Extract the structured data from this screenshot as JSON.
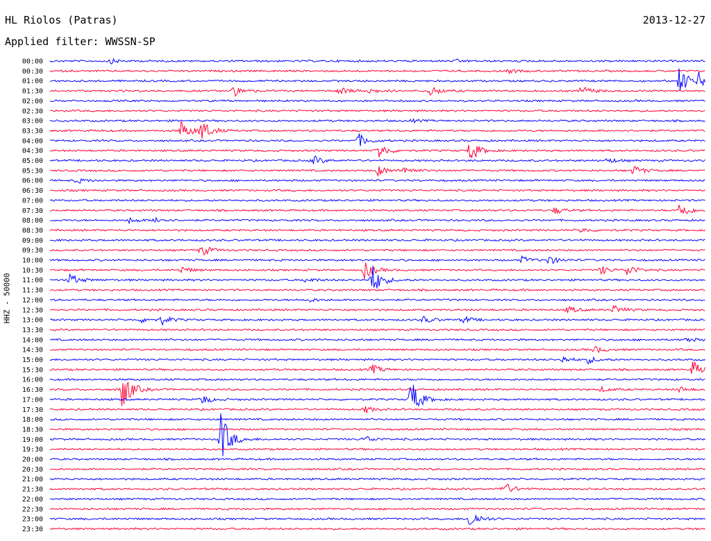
{
  "header": {
    "station": "HL Riolos (Patras)",
    "filter": "Applied filter: WWSSN-SP",
    "date": "2013-12-27"
  },
  "chart_data": {
    "type": "line",
    "title": "HL Riolos (Patras)",
    "subtitle": "Applied filter: WWSSN-SP",
    "ylabel": "HHZ - 50000",
    "row_labels": [
      "00:00",
      "00:30",
      "01:00",
      "01:30",
      "02:00",
      "02:30",
      "03:00",
      "03:30",
      "04:00",
      "04:30",
      "05:00",
      "05:30",
      "06:00",
      "06:30",
      "07:00",
      "07:30",
      "08:00",
      "08:30",
      "09:00",
      "09:30",
      "10:00",
      "10:30",
      "11:00",
      "11:30",
      "12:00",
      "12:30",
      "13:00",
      "13:30",
      "14:00",
      "14:30",
      "15:00",
      "15:30",
      "16:00",
      "16:30",
      "17:00",
      "17:30",
      "18:00",
      "18:30",
      "19:00",
      "19:30",
      "20:00",
      "20:30",
      "21:00",
      "21:30",
      "22:00",
      "22:30",
      "23:00",
      "23:30"
    ],
    "colors": [
      "#0000ff",
      "#ff0033"
    ],
    "grid": false,
    "events": [
      [
        0,
        0.09,
        0.3
      ],
      [
        0,
        0.62,
        0.15
      ],
      [
        1,
        0.7,
        0.2
      ],
      [
        2,
        0.96,
        1.6
      ],
      [
        2,
        0.99,
        0.8
      ],
      [
        3,
        0.28,
        0.6
      ],
      [
        3,
        0.44,
        0.5
      ],
      [
        3,
        0.48,
        0.4
      ],
      [
        3,
        0.58,
        0.6
      ],
      [
        3,
        0.81,
        0.6
      ],
      [
        6,
        0.55,
        0.15
      ],
      [
        7,
        0.2,
        1.1
      ],
      [
        7,
        0.23,
        1.3
      ],
      [
        8,
        0.47,
        0.8
      ],
      [
        9,
        0.5,
        1.0
      ],
      [
        9,
        0.64,
        1.3
      ],
      [
        10,
        0.4,
        0.6
      ],
      [
        10,
        0.85,
        0.3
      ],
      [
        11,
        0.5,
        0.6
      ],
      [
        11,
        0.54,
        0.5
      ],
      [
        11,
        0.89,
        0.6
      ],
      [
        12,
        0.04,
        0.3
      ],
      [
        15,
        0.77,
        0.4
      ],
      [
        15,
        0.96,
        1.0
      ],
      [
        16,
        0.12,
        0.3
      ],
      [
        16,
        0.16,
        0.4
      ],
      [
        17,
        0.81,
        0.3
      ],
      [
        19,
        0.23,
        0.7
      ],
      [
        20,
        0.72,
        0.4
      ],
      [
        20,
        0.76,
        0.5
      ],
      [
        21,
        0.2,
        0.4
      ],
      [
        21,
        0.48,
        1.0
      ],
      [
        21,
        0.84,
        0.5
      ],
      [
        21,
        0.88,
        0.7
      ],
      [
        22,
        0.03,
        0.7
      ],
      [
        22,
        0.39,
        0.3
      ],
      [
        22,
        0.49,
        2.0
      ],
      [
        24,
        0.39,
        0.3
      ],
      [
        25,
        0.79,
        0.4
      ],
      [
        25,
        0.86,
        0.5
      ],
      [
        26,
        0.14,
        0.3
      ],
      [
        26,
        0.17,
        0.5
      ],
      [
        26,
        0.57,
        0.4
      ],
      [
        26,
        0.63,
        0.4
      ],
      [
        28,
        0.97,
        0.3
      ],
      [
        29,
        0.83,
        0.4
      ],
      [
        30,
        0.78,
        0.4
      ],
      [
        30,
        0.82,
        0.4
      ],
      [
        31,
        0.49,
        0.6
      ],
      [
        31,
        0.98,
        1.0
      ],
      [
        33,
        0.11,
        2.4
      ],
      [
        33,
        0.84,
        0.3
      ],
      [
        33,
        0.96,
        0.3
      ],
      [
        34,
        0.23,
        0.6
      ],
      [
        34,
        0.55,
        2.3
      ],
      [
        35,
        0.48,
        0.4
      ],
      [
        38,
        0.26,
        3.2
      ],
      [
        38,
        0.48,
        0.4
      ],
      [
        43,
        0.69,
        0.9
      ],
      [
        46,
        0.64,
        1.2
      ]
    ]
  }
}
